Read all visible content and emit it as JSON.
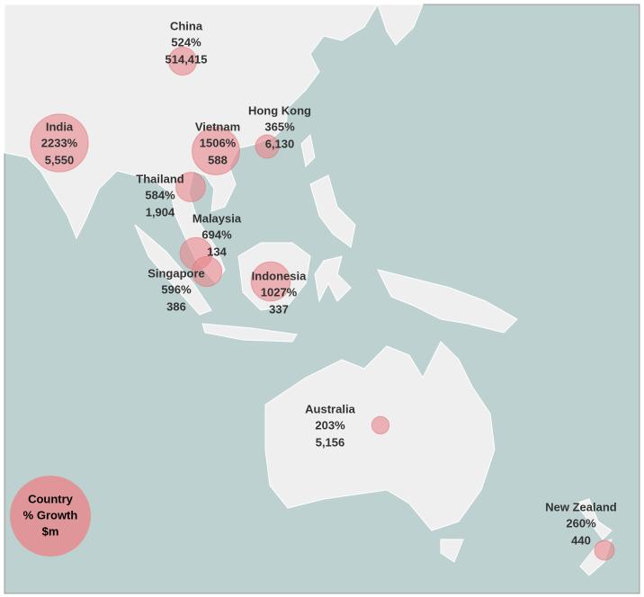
{
  "chart_data": {
    "type": "bubble-map",
    "categories": [
      "China",
      "India",
      "Vietnam",
      "Hong Kong",
      "Thailand",
      "Malaysia",
      "Singapore",
      "Indonesia",
      "Australia",
      "New Zealand"
    ],
    "series": [
      {
        "name": "% Growth",
        "color": "#e8868a",
        "values": [
          524,
          2233,
          1506,
          365,
          584,
          694,
          596,
          1027,
          203,
          260
        ],
        "value_labels": [
          "524%",
          "2233%",
          "1506%",
          "365%",
          "584%",
          "694%",
          "596%",
          "1027%",
          "203%",
          "260%"
        ]
      },
      {
        "name": "$m",
        "values": [
          514415,
          5550,
          588,
          6130,
          1904,
          134,
          386,
          337,
          5156,
          440
        ],
        "value_labels": [
          "514,415",
          "5,550",
          "588",
          "6,130",
          "1,904",
          "134",
          "386",
          "337",
          "5,156",
          "440"
        ]
      }
    ],
    "legend": [
      "Country",
      "% Growth",
      "$m"
    ]
  }
}
